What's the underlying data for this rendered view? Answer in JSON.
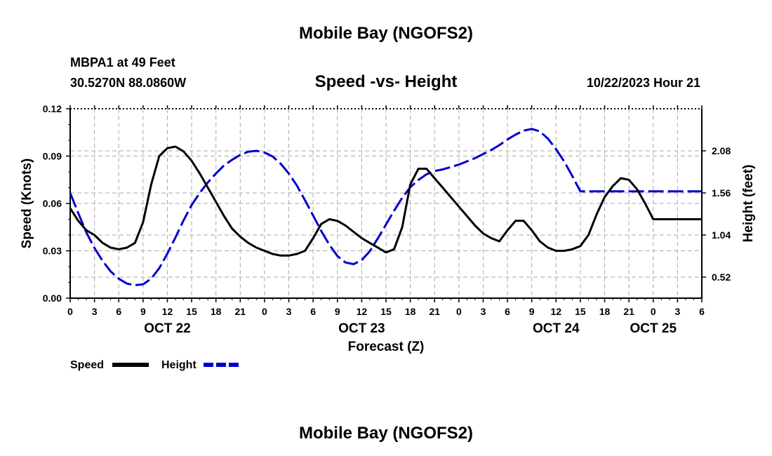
{
  "header": {
    "title": "Mobile Bay (NGOFS2)",
    "station": "MBPA1 at 49 Feet",
    "coords": "30.5270N  88.0860W",
    "subtitle": "Speed -vs- Height",
    "datetime": "10/22/2023 Hour 21"
  },
  "footer": {
    "title": "Mobile Bay (NGOFS2)"
  },
  "colors": {
    "speed": "#000000",
    "height": "#0000cc",
    "grid": "#aaaaaa"
  },
  "chart_data": {
    "type": "line",
    "title": "Speed -vs- Height",
    "xlabel": "Forecast (Z)",
    "ylabel_left": "Speed (Knots)",
    "ylabel_right": "Height (feet)",
    "x_range_hours": [
      0,
      78
    ],
    "x_tick_step_hours": 3,
    "x_tick_labels": [
      "0",
      "3",
      "6",
      "9",
      "12",
      "15",
      "18",
      "21",
      "0",
      "3",
      "6",
      "9",
      "12",
      "15",
      "18",
      "21",
      "0",
      "3",
      "6",
      "9",
      "12",
      "15",
      "18",
      "21",
      "0",
      "3",
      "6"
    ],
    "date_labels": [
      {
        "label": "OCT 22",
        "hour": 12
      },
      {
        "label": "OCT 23",
        "hour": 36
      },
      {
        "label": "OCT 24",
        "hour": 60
      },
      {
        "label": "OCT 25",
        "hour": 72
      }
    ],
    "ylim_left": [
      0,
      0.12
    ],
    "yticks_left": [
      "0.00",
      "0.03",
      "0.06",
      "0.09",
      "0.12"
    ],
    "ylim_right": [
      0.26,
      2.6
    ],
    "yticks_right": [
      "0.52",
      "1.04",
      "1.56",
      "2.08"
    ],
    "grid": true,
    "legend": [
      {
        "name": "Speed",
        "style": "solid"
      },
      {
        "name": "Height",
        "style": "dashed"
      }
    ],
    "series": [
      {
        "name": "Speed",
        "axis": "left",
        "x": [
          0,
          1,
          2,
          3,
          4,
          5,
          6,
          7,
          8,
          9,
          10,
          11,
          12,
          13,
          14,
          15,
          16,
          17,
          18,
          19,
          20,
          21,
          22,
          23,
          24,
          25,
          26,
          27,
          28,
          29,
          30,
          31,
          32,
          33,
          34,
          35,
          36,
          37,
          38,
          39,
          40,
          41,
          42,
          43,
          44,
          45,
          46,
          47,
          48,
          49,
          50,
          51,
          52,
          53,
          54,
          55,
          56,
          57,
          58,
          59,
          60,
          61,
          62,
          63,
          64,
          65,
          66,
          67,
          68,
          69,
          70,
          71,
          72,
          73,
          74,
          75,
          76,
          77,
          78
        ],
        "values": [
          0.057,
          0.049,
          0.043,
          0.04,
          0.035,
          0.032,
          0.031,
          0.032,
          0.035,
          0.048,
          0.072,
          0.09,
          0.095,
          0.096,
          0.093,
          0.087,
          0.079,
          0.07,
          0.061,
          0.052,
          0.044,
          0.039,
          0.035,
          0.032,
          0.03,
          0.028,
          0.027,
          0.027,
          0.028,
          0.03,
          0.038,
          0.047,
          0.05,
          0.049,
          0.046,
          0.042,
          0.038,
          0.035,
          0.032,
          0.029,
          0.031,
          0.045,
          0.072,
          0.082,
          0.082,
          0.076,
          0.07,
          0.064,
          0.058,
          0.052,
          0.046,
          0.041,
          0.038,
          0.036,
          0.043,
          0.049,
          0.049,
          0.043,
          0.036,
          0.032,
          0.03,
          0.03,
          0.031,
          0.033,
          0.04,
          0.053,
          0.064,
          0.071,
          0.076,
          0.075,
          0.069,
          0.06,
          0.05,
          0.05,
          0.05,
          0.05,
          0.05,
          0.05,
          0.05
        ]
      },
      {
        "name": "Height",
        "axis": "right",
        "x": [
          0,
          1,
          2,
          3,
          4,
          5,
          6,
          7,
          8,
          9,
          10,
          11,
          12,
          13,
          14,
          15,
          16,
          17,
          18,
          19,
          20,
          21,
          22,
          23,
          24,
          25,
          26,
          27,
          28,
          29,
          30,
          31,
          32,
          33,
          34,
          35,
          36,
          37,
          38,
          39,
          40,
          41,
          42,
          43,
          44,
          45,
          46,
          47,
          48,
          49,
          50,
          51,
          52,
          53,
          54,
          55,
          56,
          57,
          58,
          59,
          60,
          61,
          62,
          63,
          64,
          65,
          66,
          67,
          68,
          69,
          70,
          71,
          72,
          73,
          74,
          75,
          76,
          77,
          78
        ],
        "values": [
          1.56,
          1.31,
          1.07,
          0.88,
          0.72,
          0.59,
          0.5,
          0.44,
          0.42,
          0.43,
          0.5,
          0.63,
          0.81,
          1.01,
          1.22,
          1.41,
          1.56,
          1.69,
          1.8,
          1.9,
          1.97,
          2.03,
          2.07,
          2.08,
          2.06,
          2.01,
          1.92,
          1.8,
          1.65,
          1.47,
          1.28,
          1.09,
          0.92,
          0.78,
          0.7,
          0.68,
          0.73,
          0.84,
          1.0,
          1.17,
          1.34,
          1.5,
          1.63,
          1.72,
          1.79,
          1.83,
          1.85,
          1.88,
          1.91,
          1.95,
          1.99,
          2.04,
          2.09,
          2.15,
          2.22,
          2.28,
          2.33,
          2.35,
          2.32,
          2.23,
          2.1,
          1.95,
          1.77,
          1.58,
          1.58,
          1.58,
          1.58,
          1.58,
          1.58,
          1.58,
          1.58,
          1.58,
          1.58,
          1.58,
          1.58,
          1.58,
          1.58,
          1.58,
          1.58
        ]
      }
    ]
  }
}
